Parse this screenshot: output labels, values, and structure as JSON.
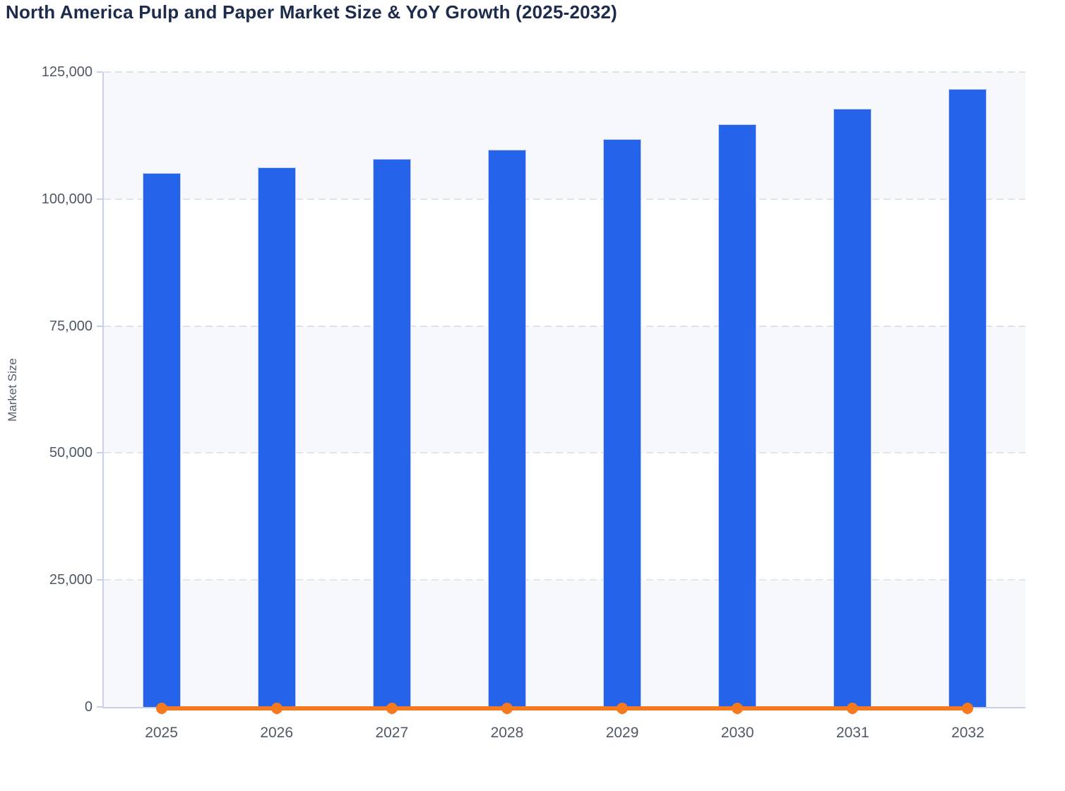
{
  "chart_data": {
    "type": "bar",
    "title": "North America Pulp and Paper Market Size & YoY Growth (2025-2032)",
    "categories": [
      "2025",
      "2026",
      "2027",
      "2028",
      "2029",
      "2030",
      "2031",
      "2032"
    ],
    "series": [
      {
        "name": "Market Size",
        "type": "bar",
        "color": "#2563eb",
        "values": [
          105100,
          106300,
          107850,
          109700,
          111830,
          114700,
          117800,
          121690
        ]
      },
      {
        "name": "YoY Growth",
        "type": "line",
        "color": "#f7791d",
        "values": [
          0,
          1.1,
          1.4,
          1.7,
          1.9,
          2.6,
          2.8,
          3.3
        ]
      }
    ],
    "xlabel": "",
    "ylabel": "Market Size",
    "ylim": [
      0,
      125000
    ],
    "yticks": [
      0,
      25000,
      50000,
      75000,
      100000,
      125000
    ],
    "ytick_labels": [
      "0",
      "25,000",
      "50,000",
      "75,000",
      "100,000",
      "125,000"
    ],
    "grid": "horizontal-dashed",
    "legend": "none",
    "plot_bands": "alternating horizontal rows between gridlines"
  },
  "colors": {
    "title": "#1d2b4c",
    "axis_label": "#525c6e",
    "tick_label": "#4f5866",
    "bar": "#2563eb",
    "bar_border": "#c3cdf0",
    "line": "#f7791d",
    "axis_line": "#c7d0e8",
    "gridline": "#e1e4ec",
    "band_light": "#f7f8fb",
    "background": "#ffffff"
  }
}
